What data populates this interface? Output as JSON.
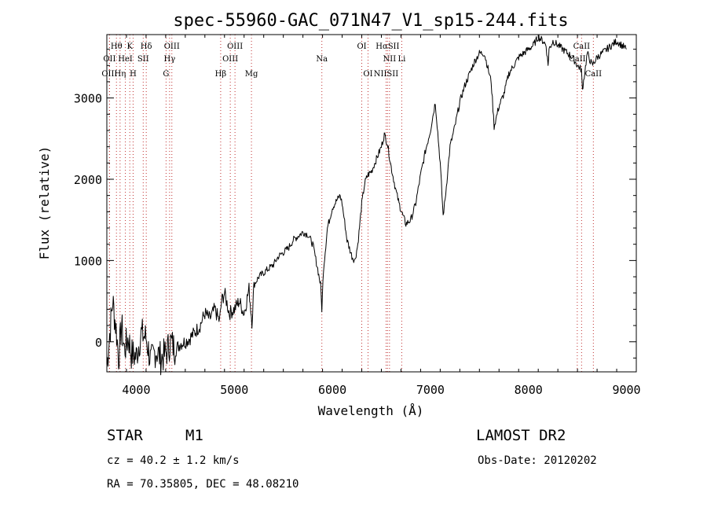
{
  "chart_data": {
    "type": "line",
    "title": "spec-55960-GAC_071N47_V1_sp15-244.fits",
    "xlabel": "Wavelength (Å)",
    "ylabel": "Flux (relative)",
    "xlim": [
      3700,
      9100
    ],
    "ylim": [
      -370,
      3780
    ],
    "x_ticks": [
      4000,
      5000,
      6000,
      7000,
      8000,
      9000
    ],
    "y_ticks": [
      0,
      1000,
      2000,
      3000
    ],
    "series": [
      {
        "name": "flux",
        "x": [
          3700,
          3760,
          3800,
          3820,
          3850,
          3880,
          3920,
          3950,
          4000,
          4050,
          4100,
          4150,
          4200,
          4250,
          4300,
          4350,
          4400,
          4450,
          4500,
          4550,
          4600,
          4650,
          4700,
          4750,
          4800,
          4850,
          4870,
          4900,
          4950,
          5000,
          5050,
          5100,
          5150,
          5180,
          5200,
          5250,
          5300,
          5350,
          5400,
          5450,
          5500,
          5550,
          5600,
          5650,
          5700,
          5750,
          5800,
          5850,
          5880,
          5893,
          5910,
          5950,
          6000,
          6050,
          6080,
          6100,
          6150,
          6200,
          6230,
          6260,
          6300,
          6330,
          6360,
          6400,
          6450,
          6500,
          6530,
          6560,
          6600,
          6650,
          6680,
          6720,
          6750,
          6800,
          6850,
          6900,
          6950,
          7000,
          7050,
          7100,
          7130,
          7150,
          7200,
          7250,
          7300,
          7350,
          7400,
          7450,
          7500,
          7550,
          7600,
          7620,
          7650,
          7700,
          7750,
          7800,
          7850,
          7900,
          7950,
          8000,
          8050,
          8100,
          8150,
          8180,
          8200,
          8210,
          8250,
          8300,
          8350,
          8400,
          8450,
          8500,
          8540,
          8550,
          8600,
          8650,
          8700,
          8750,
          8800,
          8850,
          8900,
          8950,
          9000
        ],
        "values": [
          -300,
          500,
          100,
          -200,
          200,
          -100,
          50,
          -150,
          -180,
          100,
          50,
          -250,
          -100,
          -200,
          -150,
          0,
          -100,
          -20,
          0,
          50,
          120,
          200,
          350,
          280,
          400,
          250,
          500,
          600,
          350,
          400,
          500,
          350,
          650,
          250,
          700,
          800,
          850,
          900,
          950,
          1050,
          1100,
          1150,
          1250,
          1300,
          1350,
          1320,
          1200,
          900,
          700,
          400,
          900,
          1400,
          1650,
          1750,
          1800,
          1700,
          1250,
          1050,
          1000,
          1200,
          1700,
          1950,
          2050,
          2100,
          2250,
          2400,
          2550,
          2450,
          2150,
          1850,
          1700,
          1550,
          1450,
          1500,
          1700,
          2050,
          2350,
          2600,
          2950,
          2200,
          1550,
          1750,
          2400,
          2650,
          2950,
          3150,
          3300,
          3450,
          3550,
          3550,
          3300,
          3200,
          2650,
          2900,
          3050,
          3300,
          3400,
          3500,
          3550,
          3600,
          3650,
          3750,
          3700,
          3650,
          3400,
          3600,
          3700,
          3650,
          3600,
          3550,
          3500,
          3400,
          3350,
          3100,
          3550,
          3400,
          3500,
          3550,
          3600,
          3650,
          3700,
          3650,
          3600
        ]
      }
    ],
    "spectral_lines": [
      {
        "label": "Hθ",
        "wave": 3798,
        "row": 0
      },
      {
        "label": "K",
        "wave": 3934,
        "row": 0
      },
      {
        "label": "Hδ",
        "wave": 4102,
        "row": 0
      },
      {
        "label": "OIII",
        "wave": 4363,
        "row": 0
      },
      {
        "label": "OIII",
        "wave": 5007,
        "row": 0
      },
      {
        "label": "OI",
        "wave": 6300,
        "row": 0
      },
      {
        "label": "HαSII",
        "wave": 6563,
        "row": 0
      },
      {
        "label": "CaII",
        "wave": 8542,
        "row": 0
      },
      {
        "label": "OII",
        "wave": 3727,
        "row": 1
      },
      {
        "label": "HeI",
        "wave": 3889,
        "row": 1
      },
      {
        "label": "SII",
        "wave": 4071,
        "row": 1
      },
      {
        "label": "Hγ",
        "wave": 4340,
        "row": 1
      },
      {
        "label": "OIII",
        "wave": 4959,
        "row": 1
      },
      {
        "label": "Na",
        "wave": 5893,
        "row": 1
      },
      {
        "label": "NII",
        "wave": 6583,
        "row": 1
      },
      {
        "label": "Li",
        "wave": 6708,
        "row": 1
      },
      {
        "label": "CaII",
        "wave": 8498,
        "row": 1
      },
      {
        "label": "OIII",
        "wave": 3727,
        "row": 2
      },
      {
        "label": "Hη",
        "wave": 3835,
        "row": 2
      },
      {
        "label": "H",
        "wave": 3968,
        "row": 2
      },
      {
        "label": "G",
        "wave": 4304,
        "row": 2
      },
      {
        "label": "Hβ",
        "wave": 4861,
        "row": 2
      },
      {
        "label": "Mg",
        "wave": 5175,
        "row": 2
      },
      {
        "label": "OI",
        "wave": 6364,
        "row": 2
      },
      {
        "label": "NIISII",
        "wave": 6548,
        "row": 2
      },
      {
        "label": "CaII",
        "wave": 8662,
        "row": 2
      }
    ]
  },
  "info": {
    "object_class": "STAR",
    "subclass": "M1",
    "cz": "cz = 40.2 ± 1.2 km/s",
    "coords": "RA =  70.35805, DEC =  48.08210",
    "survey": "LAMOST DR2",
    "obs_date": "Obs-Date: 20120202"
  }
}
